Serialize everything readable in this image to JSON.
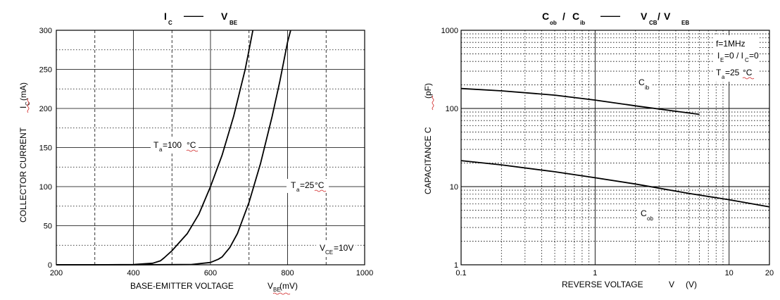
{
  "chart_data": [
    {
      "type": "line",
      "title": {
        "main": "I",
        "main_sub": "C",
        "dash": "——",
        "right": "V",
        "right_sub": "BE"
      },
      "xlabel": {
        "text": "BASE-EMITTER VOLTAGE",
        "symbol": "V",
        "symbol_sub": "BE",
        "unit": "(mV)"
      },
      "ylabel": {
        "text": "COLLECTOR CURRENT",
        "symbol": "I",
        "symbol_sub": "C",
        "unit": "(mA)"
      },
      "xlim": [
        200,
        1000
      ],
      "ylim": [
        0,
        300
      ],
      "x_ticks": [
        "200",
        "400",
        "600",
        "800",
        "1000"
      ],
      "y_ticks": [
        "0",
        "50",
        "100",
        "150",
        "200",
        "250",
        "300"
      ],
      "grid": true,
      "series": [
        {
          "label": "T",
          "label_sub": "a",
          "label_value": "=100",
          "label_unit": "°C",
          "x": [
            200,
            300,
            400,
            450,
            470,
            480,
            500,
            540,
            570,
            600,
            630,
            660,
            690,
            700,
            710
          ],
          "y": [
            0,
            0,
            0.3,
            2,
            5,
            9,
            18,
            40,
            65,
            100,
            140,
            190,
            250,
            275,
            300
          ]
        },
        {
          "label": "T",
          "label_sub": "a",
          "label_value": "=25",
          "label_unit": "°C",
          "x": [
            200,
            400,
            550,
            600,
            620,
            630,
            650,
            670,
            700,
            730,
            760,
            780,
            800,
            808
          ],
          "y": [
            0,
            0,
            0.4,
            3,
            7,
            10,
            22,
            40,
            80,
            130,
            190,
            235,
            285,
            300
          ]
        }
      ],
      "annotation": {
        "symbol": "V",
        "symbol_sub": "CE",
        "value": "=10V"
      }
    },
    {
      "type": "line",
      "title": {
        "p1": "C",
        "p1_sub": "ob",
        "sep1": "/",
        "p2": "C",
        "p2_sub": "ib",
        "dash": "——",
        "p3": "V",
        "p3_sub": "CB",
        "sep2": "/",
        "p4": "V",
        "p4_sub": "EB"
      },
      "xlabel": {
        "text": "REVERSE  VOLTAGE",
        "symbol": "V",
        "unit": "(V)"
      },
      "ylabel": {
        "text": "CAPACITANCE C",
        "unit": "(pF)"
      },
      "x_scale": "log",
      "y_scale": "log",
      "xlim": [
        0.1,
        20
      ],
      "ylim": [
        1,
        1000
      ],
      "x_ticks": [
        "0.1",
        "1",
        "10",
        "20"
      ],
      "y_ticks": [
        "1",
        "10",
        "100",
        "1000"
      ],
      "grid": true,
      "series": [
        {
          "label": "C",
          "label_sub": "ib",
          "x": [
            0.1,
            0.2,
            0.5,
            1,
            2,
            4,
            6
          ],
          "y": [
            180,
            168,
            148,
            128,
            108,
            92,
            84
          ]
        },
        {
          "label": "C",
          "label_sub": "ob",
          "x": [
            0.1,
            0.2,
            0.5,
            1,
            2,
            5,
            10,
            20
          ],
          "y": [
            21.5,
            19,
            15.5,
            13,
            10.8,
            8.2,
            6.8,
            5.5
          ]
        }
      ],
      "conditions": [
        {
          "text": "f=1MHz"
        },
        {
          "a": "I",
          "a_sub": "E",
          "b": "=0 / I",
          "b_sub": "C",
          "c": "=0"
        },
        {
          "a": "T",
          "a_sub": "a",
          "b": "=25",
          "c": "°C"
        }
      ]
    }
  ]
}
